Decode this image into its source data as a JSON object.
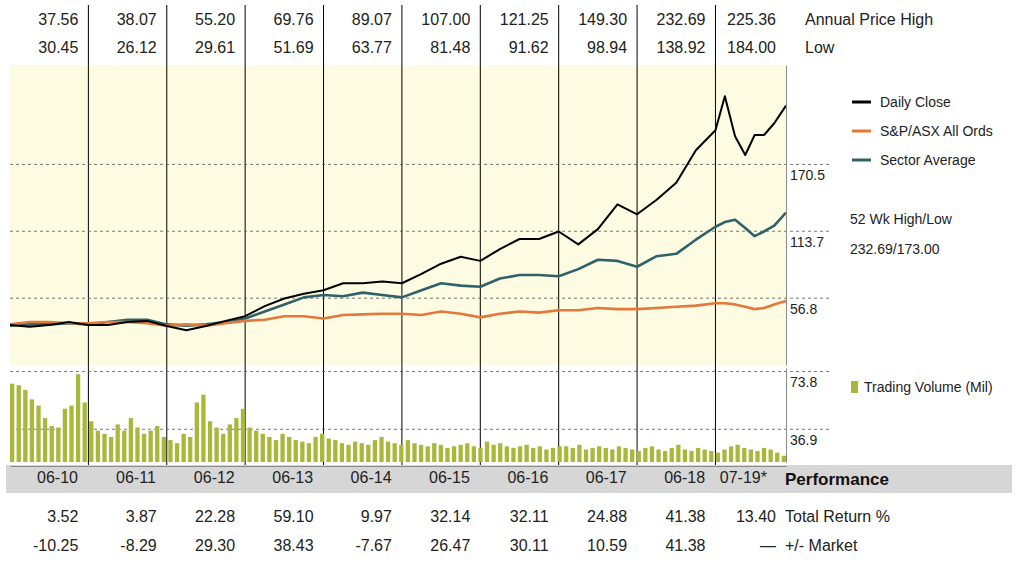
{
  "chart_data": [
    {
      "type": "line",
      "x": [
        0,
        0.25,
        0.5,
        0.75,
        1,
        1.25,
        1.5,
        1.75,
        2,
        2.25,
        2.5,
        2.75,
        3,
        3.25,
        3.5,
        3.75,
        4,
        4.25,
        4.5,
        4.75,
        5,
        5.25,
        5.5,
        5.75,
        6,
        6.25,
        6.5,
        6.75,
        7,
        7.25,
        7.5,
        7.75,
        8,
        8.25,
        8.5,
        8.75,
        9,
        9.12,
        9.25,
        9.38,
        9.5,
        9.62,
        9.75,
        9.9
      ],
      "xlim": [
        0,
        9.9
      ],
      "xticks": [
        {
          "value": 0.6,
          "label": "06-10"
        },
        {
          "value": 1.6,
          "label": "06-11"
        },
        {
          "value": 2.6,
          "label": "06-12"
        },
        {
          "value": 3.6,
          "label": "06-13"
        },
        {
          "value": 4.6,
          "label": "06-14"
        },
        {
          "value": 5.6,
          "label": "06-15"
        },
        {
          "value": 6.6,
          "label": "06-16"
        },
        {
          "value": 7.6,
          "label": "06-17"
        },
        {
          "value": 8.6,
          "label": "06-18"
        },
        {
          "value": 9.35,
          "label": "07-19*"
        }
      ],
      "period_boundaries": [
        1,
        2,
        3,
        4,
        5,
        6,
        7,
        8,
        9
      ],
      "ylim": [
        0,
        255
      ],
      "yticks": [
        56.8,
        113.7,
        170.5
      ],
      "grid": true,
      "legend": "right",
      "series": [
        {
          "name": "Daily Close",
          "color": "#000000",
          "values": [
            34,
            32.5,
            34,
            36.5,
            34,
            34,
            36.5,
            37.5,
            33.2,
            29.5,
            33.2,
            37.5,
            41.5,
            50,
            56.5,
            60.5,
            63.5,
            69.5,
            69.5,
            71,
            69.5,
            77.5,
            86.1,
            92,
            88.5,
            98.5,
            107.1,
            107.1,
            113.5,
            102.5,
            115.5,
            136.5,
            128.1,
            140.5,
            155,
            182.5,
            199.5,
            228.5,
            194.5,
            178.5,
            195.5,
            195.5,
            205.5,
            220.5
          ]
        },
        {
          "name": "S&P/ASX All Ords",
          "color": "#e2793a",
          "values": [
            34.5,
            36.5,
            36.5,
            35.5,
            35.5,
            36.5,
            36.5,
            35.5,
            33.5,
            34.5,
            33.5,
            35.5,
            37.5,
            38.5,
            41.5,
            41.5,
            39.5,
            42.5,
            43,
            43.5,
            43.5,
            42.5,
            45.5,
            43.5,
            40.5,
            43.5,
            45.5,
            44.5,
            46.5,
            46.5,
            48.5,
            47.5,
            47.5,
            48.5,
            49.5,
            50.5,
            52.5,
            52.5,
            51.5,
            49.5,
            47.5,
            48.5,
            51.5,
            54.5
          ]
        },
        {
          "name": "Sector Average",
          "color": "#2f6169",
          "values": [
            33.5,
            34.5,
            34.5,
            35.5,
            34.5,
            36.5,
            38.5,
            38.5,
            34.5,
            33.5,
            34.5,
            36.5,
            39.5,
            45.5,
            51.5,
            57.5,
            59.5,
            58.5,
            61.5,
            59.5,
            57.5,
            63.5,
            69.5,
            67.5,
            66.5,
            73.5,
            76.5,
            76.5,
            75.5,
            81.5,
            89.5,
            88.5,
            83.5,
            92.5,
            94.5,
            106.5,
            117.5,
            121.5,
            123.5,
            116.5,
            109.5,
            113.5,
            118.5,
            129.5
          ]
        }
      ],
      "annotations": [
        "52 Wk High/Low",
        "232.69/173.00"
      ]
    },
    {
      "type": "bar",
      "categories": [
        null,
        null,
        null,
        null,
        null,
        null,
        null,
        null,
        null,
        null,
        null,
        null,
        null,
        null,
        null,
        null,
        null,
        null,
        null,
        null,
        null,
        null,
        null,
        null,
        null,
        null,
        null,
        null,
        null,
        null,
        null,
        null,
        null,
        null,
        null,
        null,
        null,
        null,
        null,
        null,
        null,
        null,
        null,
        null,
        null,
        null,
        null,
        null,
        null,
        null,
        null,
        null,
        null,
        null,
        null,
        null,
        null,
        null,
        null,
        null,
        null,
        null,
        null,
        null,
        null,
        null,
        null,
        null,
        null,
        null,
        null,
        null,
        null,
        null,
        null,
        null,
        null,
        null,
        null,
        null,
        null,
        null,
        null,
        null,
        null,
        null,
        null,
        null,
        null,
        null,
        null,
        null,
        null,
        null,
        null,
        null,
        null,
        null,
        null,
        null,
        null,
        null,
        null,
        null,
        null,
        null,
        null,
        null,
        null,
        null,
        null,
        null,
        null,
        null,
        null,
        null,
        null,
        null
      ],
      "ylim": [
        16,
        76
      ],
      "yticks": [
        36.9,
        73.8
      ],
      "grid": true,
      "legend": "right",
      "series": [
        {
          "name": "Trading Volume (Mil)",
          "color": "#a9b73a",
          "values": [
            66,
            65,
            62,
            56,
            52,
            44,
            39,
            38,
            50,
            52,
            72,
            54,
            42,
            36,
            34,
            32,
            40,
            36,
            44,
            38,
            34,
            36,
            39,
            32,
            30,
            28,
            34,
            32,
            54,
            59,
            42,
            38,
            34,
            40,
            44,
            50,
            38,
            36,
            34,
            32,
            30,
            34,
            32,
            30,
            29,
            28,
            32,
            34,
            31,
            30,
            28,
            27,
            29,
            28,
            27,
            30,
            32,
            29,
            28,
            27,
            30,
            28,
            27,
            26,
            28,
            27,
            25,
            26,
            27,
            28,
            26,
            25,
            29,
            27,
            28,
            26,
            25,
            26,
            27,
            25,
            26,
            24,
            25,
            26,
            26,
            25,
            27,
            24,
            25,
            26,
            25,
            24,
            26,
            25,
            24,
            23,
            25,
            26,
            24,
            23,
            25,
            27,
            24,
            23,
            25,
            24,
            23,
            22,
            24,
            26,
            27,
            25,
            24,
            23,
            25,
            24,
            22,
            20
          ]
        }
      ]
    }
  ],
  "price_table": {
    "rows": [
      {
        "label": "Annual Price High",
        "values": [
          "37.56",
          "38.07",
          "55.20",
          "69.76",
          "89.07",
          "107.00",
          "121.25",
          "149.30",
          "232.69",
          "225.36"
        ]
      },
      {
        "label": "Low",
        "values": [
          "30.45",
          "26.12",
          "29.61",
          "51.69",
          "63.77",
          "81.48",
          "91.62",
          "98.94",
          "138.92",
          "184.00"
        ]
      }
    ]
  },
  "performance": {
    "title": "Performance",
    "rows": [
      {
        "label": "Total Return %",
        "values": [
          "3.52",
          "3.87",
          "22.28",
          "59.10",
          "9.97",
          "32.14",
          "32.11",
          "24.88",
          "41.38",
          "13.40"
        ]
      },
      {
        "label": "+/- Market",
        "values": [
          "-10.25",
          "-8.29",
          "29.30",
          "38.43",
          "-7.67",
          "26.47",
          "30.11",
          "10.59",
          "41.38",
          "—"
        ]
      }
    ]
  }
}
